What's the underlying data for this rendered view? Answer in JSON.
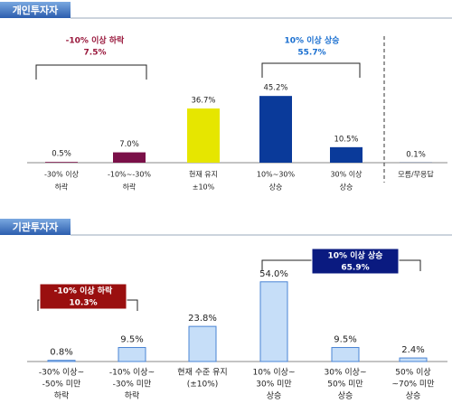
{
  "chart_data": [
    {
      "type": "bar",
      "title": "개인투자자",
      "categories": [
        [
          "-30% 이상",
          "하락"
        ],
        [
          "-10%~-30%",
          "하락"
        ],
        [
          "현재 유지",
          "±10%"
        ],
        [
          "10%~30%",
          "상승"
        ],
        [
          "30% 이상",
          "상승"
        ],
        [
          "모름/무응답"
        ]
      ],
      "values": [
        0.5,
        7.0,
        36.7,
        45.2,
        10.5,
        0.1
      ],
      "value_labels": [
        "0.5%",
        "7.0%",
        "36.7%",
        "45.2%",
        "10.5%",
        "0.1%"
      ],
      "colors": [
        "#7a1048",
        "#7a1048",
        "#e6e600",
        "#0a3a9a",
        "#0a3a9a",
        "#0a3a9a"
      ],
      "ylim": [
        0,
        60
      ],
      "annotations": [
        {
          "lines": [
            "-10% 이상 하락",
            "7.5%"
          ],
          "color": "#99183c",
          "boxed": false
        },
        {
          "lines": [
            "10% 이상 상승",
            "55.7%"
          ],
          "color": "#1a6fd0",
          "boxed": false
        }
      ]
    },
    {
      "type": "bar",
      "title": "기관투자자",
      "categories": [
        [
          "-30% 이상~",
          "-50% 미만",
          "하락"
        ],
        [
          "-10% 이상~",
          "-30% 미만",
          "하락"
        ],
        [
          "현재 수준 유지",
          "(±10%)"
        ],
        [
          "10% 이상~",
          "30% 미만",
          "상승"
        ],
        [
          "30% 이상~",
          "50% 미만",
          "상승"
        ],
        [
          "50% 이상",
          "~70% 미만",
          "상승"
        ]
      ],
      "values": [
        0.8,
        9.5,
        23.8,
        54.0,
        9.5,
        2.4
      ],
      "value_labels": [
        "0.8%",
        "9.5%",
        "23.8%",
        "54.0%",
        "9.5%",
        "2.4%"
      ],
      "colors": [
        "#c6def8",
        "#c6def8",
        "#c6def8",
        "#c6def8",
        "#c6def8",
        "#c6def8"
      ],
      "ylim": [
        0,
        60
      ],
      "annotations": [
        {
          "lines": [
            "-10% 이상 하락",
            "10.3%"
          ],
          "color": "#9a0f0f",
          "boxed": true
        },
        {
          "lines": [
            "10% 이상 상승",
            "65.9%"
          ],
          "color": "#0a1a80",
          "boxed": true
        }
      ]
    }
  ]
}
